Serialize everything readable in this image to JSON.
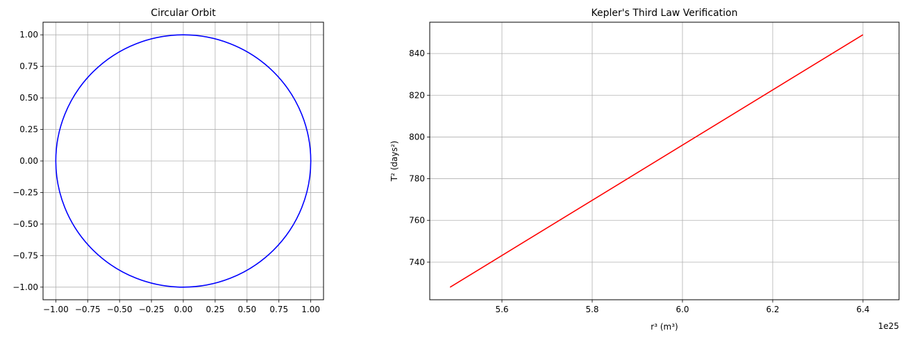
{
  "chart_data": [
    {
      "type": "line",
      "title": "Circular Orbit",
      "xlabel": "",
      "ylabel": "",
      "xlim": [
        -1.1,
        1.1
      ],
      "ylim": [
        -1.1,
        1.1
      ],
      "xticks": [
        -1.0,
        -0.75,
        -0.5,
        -0.25,
        0.0,
        0.25,
        0.5,
        0.75,
        1.0
      ],
      "xtick_labels": [
        "−1.00",
        "−0.75",
        "−0.50",
        "−0.25",
        "0.00",
        "0.25",
        "0.50",
        "0.75",
        "1.00"
      ],
      "yticks": [
        -1.0,
        -0.75,
        -0.5,
        -0.25,
        0.0,
        0.25,
        0.5,
        0.75,
        1.0
      ],
      "ytick_labels": [
        "−1.00",
        "−0.75",
        "−0.50",
        "−0.25",
        "0.00",
        "0.25",
        "0.50",
        "0.75",
        "1.00"
      ],
      "grid": true,
      "series": [
        {
          "shape": "circle",
          "center": [
            0,
            0
          ],
          "radius": 1.0,
          "color": "#0000ff"
        }
      ]
    },
    {
      "type": "line",
      "title": "Kepler's Third Law Verification",
      "xlabel": "r³ (m³)",
      "ylabel": "T² (days²)",
      "offset_label": "1e25",
      "xlim": [
        5.44,
        6.48
      ],
      "ylim": [
        722,
        855
      ],
      "xticks": [
        5.6,
        5.8,
        6.0,
        6.2,
        6.4
      ],
      "xtick_labels": [
        "5.6",
        "5.8",
        "6.0",
        "6.2",
        "6.4"
      ],
      "yticks": [
        740,
        760,
        780,
        800,
        820,
        840
      ],
      "ytick_labels": [
        "740",
        "760",
        "780",
        "800",
        "820",
        "840"
      ],
      "grid": true,
      "series": [
        {
          "x": [
            5.485,
            6.4
          ],
          "y": [
            728,
            849
          ],
          "color": "#ff0000"
        }
      ]
    }
  ]
}
